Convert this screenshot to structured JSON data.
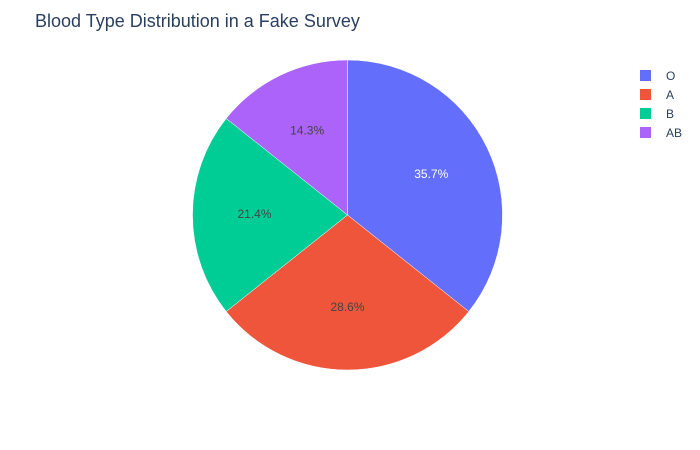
{
  "chart_data": {
    "type": "pie",
    "title": "Blood Type Distribution in a Fake Survey",
    "categories": [
      "O",
      "A",
      "B",
      "AB"
    ],
    "values": [
      35.7,
      28.6,
      21.4,
      14.3
    ],
    "labels": [
      "35.7%",
      "28.6%",
      "21.4%",
      "14.3%"
    ],
    "colors": [
      "#636efa",
      "#ef553b",
      "#00cc96",
      "#ab63fa"
    ],
    "label_colors": [
      "#ffffff",
      "#444444",
      "#444444",
      "#444444"
    ],
    "direction": "clockwise",
    "legend": "top-right"
  }
}
